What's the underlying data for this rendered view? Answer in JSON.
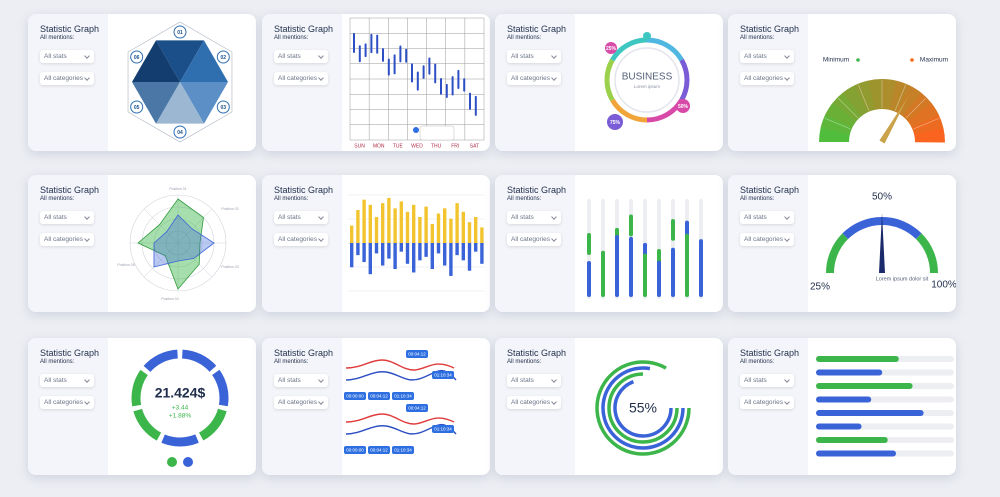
{
  "cards": [
    {
      "title": "Statistic Graph",
      "subtitle": "All mentions:",
      "stats": "All stats",
      "categories": "All categories",
      "labels": [
        "01",
        "02",
        "03",
        "04",
        "05",
        "06"
      ]
    },
    {
      "title": "Statistic Graph",
      "subtitle": "All mentions:",
      "stats": "All stats",
      "categories": "All categories",
      "days": [
        "SUN",
        "MON",
        "TUE",
        "WED",
        "THU",
        "FRI",
        "SAT"
      ]
    },
    {
      "title": "Statistic Graph",
      "subtitle": "All mentions:",
      "stats": "All stats",
      "categories": "All categories",
      "center_title": "BUSINESS",
      "center_text": "Lorem ipsum",
      "badges": [
        "25%",
        "50%",
        "75%"
      ]
    },
    {
      "title": "Statistic Graph",
      "subtitle": "All mentions:",
      "stats": "All stats",
      "categories": "All categories",
      "min_label": "Minimum",
      "max_label": "Maximum"
    },
    {
      "title": "Statistic Graph",
      "subtitle": "All mentions:",
      "stats": "All stats",
      "categories": "All categories",
      "axis_labels": [
        "Position 01",
        "Position 02",
        "Position 03",
        "Position 04",
        "Position 05"
      ]
    },
    {
      "title": "Statistic Graph",
      "subtitle": "All mentions:",
      "stats": "All stats",
      "categories": "All categories",
      "ylim": [
        0,
        60
      ],
      "up_values": [
        20,
        38,
        50,
        44,
        30,
        46,
        52,
        40,
        48,
        36,
        44,
        30,
        42,
        22,
        34,
        40,
        28,
        46,
        36,
        24,
        30,
        18
      ],
      "down_values": [
        28,
        14,
        22,
        36,
        12,
        26,
        18,
        30,
        10,
        24,
        34,
        20,
        16,
        30,
        12,
        26,
        38,
        14,
        20,
        32,
        10,
        24
      ]
    },
    {
      "title": "Statistic Graph",
      "subtitle": "All mentions:",
      "stats": "All stats",
      "categories": "All categories"
    },
    {
      "title": "Statistic Graph",
      "subtitle": "All mentions:",
      "stats": "All stats",
      "categories": "All categories",
      "top_label": "50%",
      "left_label": "25%",
      "right_label": "100%",
      "caption": "Lorem ipsum  dolor sit"
    },
    {
      "title": "Statistic Graph",
      "subtitle": "All mentions:",
      "stats": "All stats",
      "categories": "All categories",
      "amount": "21.424$",
      "change": "+3.44",
      "change_pct": "+1.88%"
    },
    {
      "title": "Statistic Graph",
      "subtitle": "All mentions:",
      "stats": "All stats",
      "categories": "All categories",
      "time_labels": [
        "00:04:12",
        "01:10:34",
        "00:00:00",
        "00:04:12",
        "01:10:34",
        "00:04:12",
        "01:10:34",
        "00:00:00",
        "00:04:12",
        "01:10:34"
      ]
    },
    {
      "title": "Statistic Graph",
      "subtitle": "All mentions:",
      "stats": "All stats",
      "categories": "All categories",
      "percent": "55%"
    },
    {
      "title": "Statistic Graph",
      "subtitle": "All mentions:",
      "stats": "All stats",
      "categories": "All categories",
      "xlim": [
        0,
        100
      ],
      "bar_values": [
        60,
        48,
        70,
        40,
        78,
        33,
        52,
        58
      ],
      "bar_colors": [
        "#3cb54a",
        "#3a63d8",
        "#3cb54a",
        "#3a63d8",
        "#3a63d8",
        "#3a63d8",
        "#3cb54a",
        "#3a63d8"
      ]
    }
  ]
}
